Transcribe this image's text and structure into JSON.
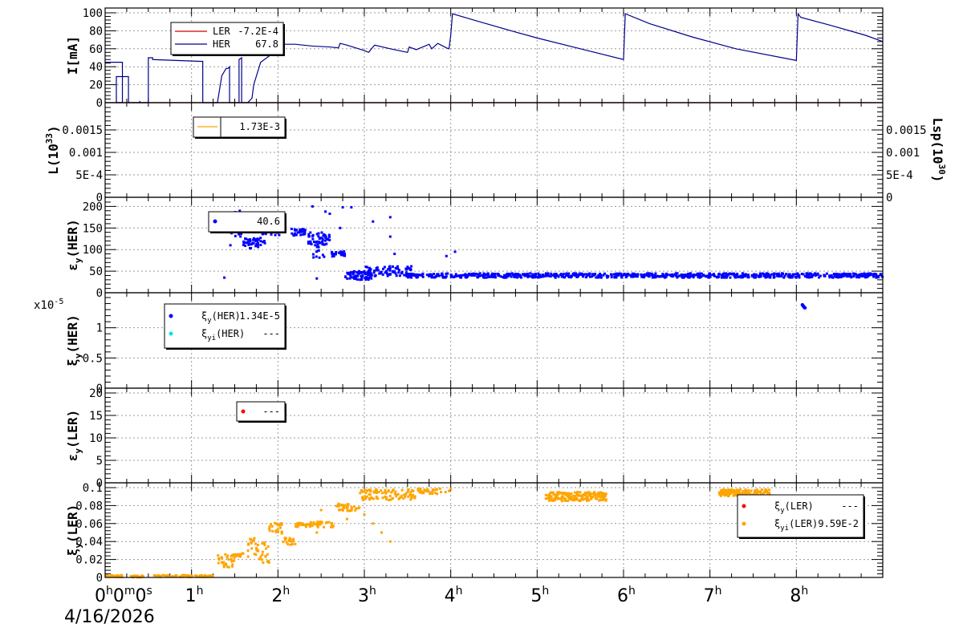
{
  "date": "4/16/2026",
  "x_axis": {
    "unit": "hours",
    "range": [
      0,
      9
    ],
    "tick_labels": [
      {
        "value": 0,
        "text": "0",
        "sup": "h",
        "extra": "0",
        "extra_sup": "m",
        "extra2": "0",
        "extra2_sup": "s"
      },
      {
        "value": 1,
        "text": "1",
        "sup": "h"
      },
      {
        "value": 2,
        "text": "2",
        "sup": "h"
      },
      {
        "value": 3,
        "text": "3",
        "sup": "h"
      },
      {
        "value": 4,
        "text": "4",
        "sup": "h"
      },
      {
        "value": 5,
        "text": "5",
        "sup": "h"
      },
      {
        "value": 6,
        "text": "6",
        "sup": "h"
      },
      {
        "value": 7,
        "text": "7",
        "sup": "h"
      },
      {
        "value": 8,
        "text": "8",
        "sup": "h"
      }
    ]
  },
  "colors": {
    "ler_line": "#cc0000",
    "her_line": "#00008b",
    "lumi_line": "#ffa500",
    "her_points": "#0000ff",
    "xi_yi_her": "#00e5e5",
    "ler_points": "#ff0000",
    "xi_yi_ler": "#ffa500"
  },
  "chart_data": [
    {
      "type": "line",
      "ylabel": "I[mA]",
      "ylim": [
        0,
        100
      ],
      "y_ticks": [
        0,
        20,
        40,
        60,
        80,
        100
      ],
      "grid": true,
      "legend": [
        {
          "name": "LER",
          "value": "-7.2E-4",
          "color": "#cc0000"
        },
        {
          "name": "HER",
          "value": "67.8",
          "color": "#00008b"
        }
      ],
      "series": [
        {
          "name": "LER",
          "x": [
            0,
            9
          ],
          "y": [
            0,
            0
          ]
        },
        {
          "name": "HER",
          "x": [
            0,
            0.005,
            0.2,
            0.2,
            0.13,
            0.13,
            0.27,
            0.27,
            0.4,
            0.4,
            0.4,
            0.4,
            0.5,
            0.5,
            0.55,
            0.55,
            1.1,
            1.13,
            1.13,
            1.2,
            1.3,
            1.3,
            1.35,
            1.4,
            1.42,
            1.44,
            1.44,
            1.55,
            1.55,
            1.58,
            1.58,
            1.65,
            1.7,
            1.72,
            1.8,
            1.9,
            1.95,
            2.0,
            2.05,
            2.2,
            2.4,
            2.6,
            2.7,
            2.72,
            2.8,
            3.0,
            3.05,
            3.1,
            3.12,
            3.3,
            3.5,
            3.52,
            3.6,
            3.75,
            3.78,
            3.85,
            3.95,
            3.98,
            4.0,
            4.02,
            4.3,
            4.7,
            5.0,
            5.5,
            6.0,
            6.02,
            6.3,
            6.8,
            7.3,
            8.0,
            8.02,
            8.05,
            8.4,
            8.8,
            9.0
          ],
          "y": [
            45,
            45,
            45,
            0,
            0,
            29,
            29,
            0,
            0,
            2,
            2,
            0,
            0,
            50,
            50,
            48,
            46,
            46,
            0,
            0,
            0,
            0,
            30,
            38,
            38,
            40,
            0,
            0,
            48,
            50,
            0,
            0,
            5,
            20,
            45,
            52,
            60,
            63,
            65,
            65,
            63,
            62,
            61,
            66,
            64,
            58,
            56,
            62,
            64,
            60,
            56,
            62,
            59,
            65,
            60,
            66,
            61,
            60,
            75,
            99,
            91,
            80,
            72,
            60,
            48,
            99,
            88,
            73,
            60,
            47,
            99,
            95,
            86,
            75,
            68
          ]
        }
      ]
    },
    {
      "type": "line",
      "ylabel": "L(10",
      "ylabel_sup": "33",
      "ylabel_tail": ")",
      "y2label": "Lsp(10",
      "y2label_sup": "30",
      "y2label_tail": ")",
      "ylim": [
        0,
        0.002
      ],
      "y_ticks": [
        0,
        0.0005,
        0.001,
        0.0015
      ],
      "y_tick_labels": [
        "0",
        "5E-4",
        "0.001",
        "0.0015"
      ],
      "grid": true,
      "legend": [
        {
          "name": "",
          "value": "1.73E-3",
          "color": "#ffa500"
        }
      ],
      "series": []
    },
    {
      "type": "scatter",
      "ylabel": "ε",
      "ylabel_sub": "y",
      "ylabel_tail": "(HER)",
      "ylim": [
        0,
        210
      ],
      "y_ticks": [
        0,
        50,
        100,
        150,
        200
      ],
      "grid": true,
      "legend": [
        {
          "name": "",
          "value": "40.6",
          "color": "#0000ff"
        }
      ],
      "series": [
        {
          "name": "",
          "segments": [
            {
              "x0": 1.4,
              "x1": 1.65,
              "yc": 160,
              "spread": 30,
              "n": 35
            },
            {
              "x0": 1.6,
              "x1": 1.85,
              "yc": 115,
              "spread": 12,
              "n": 45
            },
            {
              "x0": 1.8,
              "x1": 2.02,
              "yc": 145,
              "spread": 12,
              "n": 40
            },
            {
              "x0": 2.15,
              "x1": 2.35,
              "yc": 140,
              "spread": 8,
              "n": 30
            },
            {
              "x0": 2.35,
              "x1": 2.6,
              "yc": 125,
              "spread": 15,
              "n": 45
            },
            {
              "x0": 2.4,
              "x1": 2.55,
              "yc": 100,
              "spread": 20,
              "n": 15
            },
            {
              "x0": 2.6,
              "x1": 2.78,
              "yc": 90,
              "spread": 6,
              "n": 25
            },
            {
              "x0": 2.78,
              "x1": 3.1,
              "yc": 40,
              "spread": 10,
              "n": 60
            },
            {
              "x0": 3.0,
              "x1": 3.55,
              "yc": 50,
              "spread": 12,
              "n": 80
            },
            {
              "x0": 3.5,
              "x1": 4.1,
              "yc": 40,
              "spread": 5,
              "n": 70
            },
            {
              "x0": 4.1,
              "x1": 9.0,
              "yc": 40,
              "spread": 5,
              "n": 700
            }
          ],
          "outliers": [
            [
              2.02,
              185
            ],
            [
              2.4,
              200
            ],
            [
              2.55,
              188
            ],
            [
              2.6,
              183
            ],
            [
              2.75,
              198
            ],
            [
              2.85,
              198
            ],
            [
              3.3,
              175
            ],
            [
              3.3,
              130
            ],
            [
              3.1,
              165
            ],
            [
              1.38,
              35
            ],
            [
              2.45,
              33
            ],
            [
              2.72,
              150
            ],
            [
              3.35,
              90
            ],
            [
              3.95,
              85
            ],
            [
              4.05,
              95
            ],
            [
              1.45,
              110
            ]
          ]
        }
      ]
    },
    {
      "type": "scatter",
      "ylabel": "ξ",
      "ylabel_sub": "y",
      "ylabel_tail": "(HER)",
      "scale_label": "x10",
      "scale_sup": "-5",
      "ylim": [
        0,
        1.5
      ],
      "y_ticks": [
        0,
        0.5,
        1
      ],
      "grid": true,
      "legend": [
        {
          "name": "ξ",
          "name_sub": "y",
          "name_tail": "(HER)",
          "value": "1.34E-5",
          "color": "#0000ff"
        },
        {
          "name": "ξ",
          "name_sub": "yi",
          "name_tail": "(HER)",
          "value": "---",
          "color": "#00e5e5"
        }
      ],
      "series": [
        {
          "name": "ξy(HER)",
          "points": [
            [
              8.07,
              1.38
            ],
            [
              8.08,
              1.36
            ],
            [
              8.09,
              1.34
            ],
            [
              8.1,
              1.33
            ]
          ]
        }
      ]
    },
    {
      "type": "scatter",
      "ylabel": "ε",
      "ylabel_sub": "y",
      "ylabel_tail": "(LER)",
      "ylim": [
        0,
        20
      ],
      "y_ticks": [
        0,
        5,
        10,
        15,
        20
      ],
      "grid": true,
      "legend": [
        {
          "name": "",
          "value": "---",
          "color": "#ff0000"
        }
      ],
      "series": []
    },
    {
      "type": "scatter",
      "ylabel": "ξ",
      "ylabel_sub": "y",
      "ylabel_tail": "(LER)",
      "ylim": [
        0,
        0.1
      ],
      "y_ticks": [
        0,
        0.02,
        0.04,
        0.06,
        0.08,
        0.1
      ],
      "grid": true,
      "legend": [
        {
          "name": "ξ",
          "name_sub": "y",
          "name_tail": "(LER)",
          "value": "---",
          "color": "#ff0000"
        },
        {
          "name": "ξ",
          "name_sub": "yi",
          "name_tail": "(LER)",
          "value": "9.59E-2",
          "color": "#ffa500"
        }
      ],
      "series": [
        {
          "name": "ξyi(LER)",
          "segments": [
            {
              "x0": 0.0,
              "x1": 0.2,
              "yc": 0.0015,
              "spread": 0.001,
              "n": 25
            },
            {
              "x0": 0.3,
              "x1": 0.45,
              "yc": 0.001,
              "spread": 0.001,
              "n": 15
            },
            {
              "x0": 0.55,
              "x1": 1.25,
              "yc": 0.0015,
              "spread": 0.001,
              "n": 80
            },
            {
              "x0": 1.3,
              "x1": 1.5,
              "yc": 0.018,
              "spread": 0.008,
              "n": 30
            },
            {
              "x0": 1.5,
              "x1": 1.6,
              "yc": 0.025,
              "spread": 0.002,
              "n": 15
            },
            {
              "x0": 1.65,
              "x1": 1.9,
              "yc": 0.03,
              "spread": 0.015,
              "n": 40
            },
            {
              "x0": 1.9,
              "x1": 2.05,
              "yc": 0.055,
              "spread": 0.006,
              "n": 25
            },
            {
              "x0": 2.05,
              "x1": 2.2,
              "yc": 0.04,
              "spread": 0.004,
              "n": 20
            },
            {
              "x0": 2.2,
              "x1": 2.65,
              "yc": 0.059,
              "spread": 0.003,
              "n": 55
            },
            {
              "x0": 2.65,
              "x1": 2.95,
              "yc": 0.078,
              "spread": 0.004,
              "n": 35
            },
            {
              "x0": 2.95,
              "x1": 3.6,
              "yc": 0.092,
              "spread": 0.006,
              "n": 90
            },
            {
              "x0": 3.6,
              "x1": 4.0,
              "yc": 0.096,
              "spread": 0.003,
              "n": 30
            },
            {
              "x0": 5.1,
              "x1": 5.8,
              "yc": 0.09,
              "spread": 0.005,
              "n": 170
            },
            {
              "x0": 7.1,
              "x1": 7.7,
              "yc": 0.094,
              "spread": 0.004,
              "n": 150
            },
            {
              "x0": 7.7,
              "x1": 8.05,
              "yc": 0.085,
              "spread": 0.005,
              "n": 40
            }
          ],
          "outliers": [
            [
              2.8,
              0.065
            ],
            [
              3.0,
              0.07
            ],
            [
              3.3,
              0.04
            ],
            [
              3.1,
              0.06
            ],
            [
              2.5,
              0.075
            ],
            [
              2.45,
              0.05
            ],
            [
              3.55,
              0.09
            ],
            [
              4.0,
              0.099
            ],
            [
              3.2,
              0.05
            ]
          ]
        }
      ]
    }
  ]
}
